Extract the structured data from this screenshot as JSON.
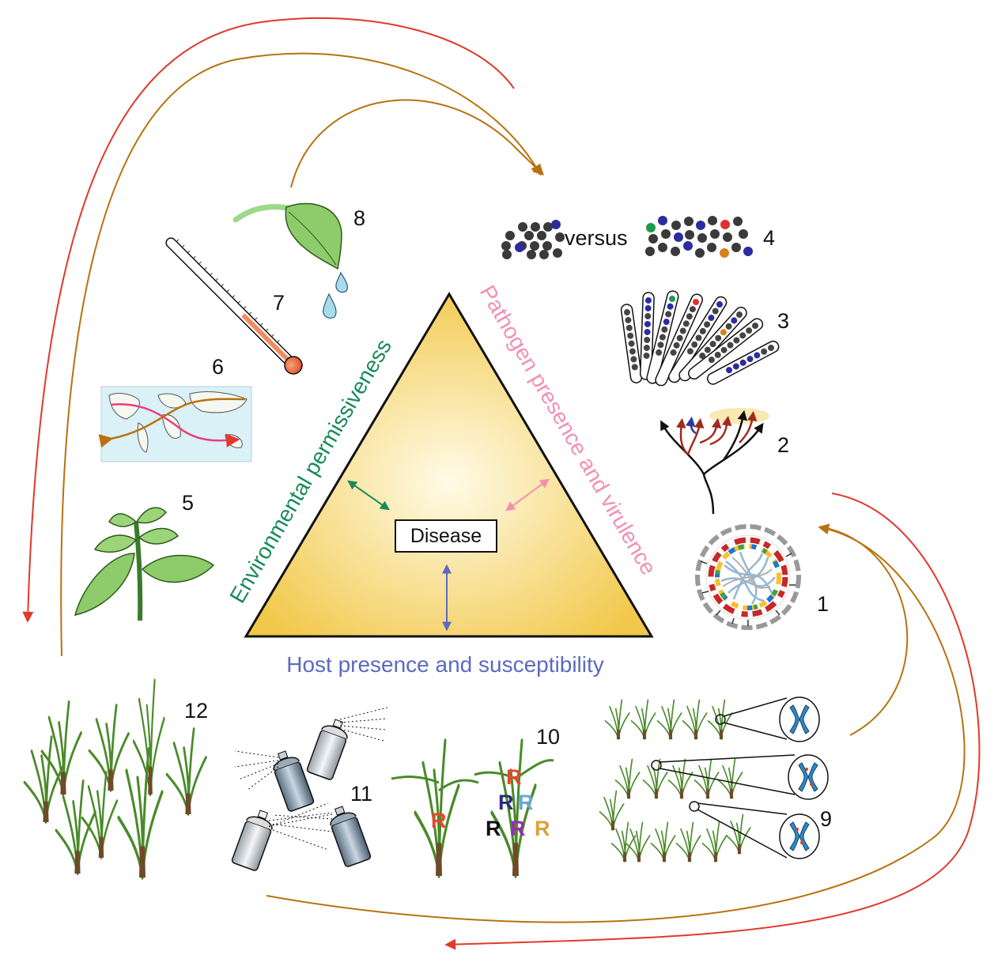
{
  "triangle": {
    "center_label": "Disease",
    "left_side_label": "Environmental permissiveness",
    "right_side_label": "Pathogen presence and virulence",
    "bottom_label": "Host presence and susceptibility",
    "colors": {
      "environment": "#1a8a5a",
      "pathogen": "#f48fb1",
      "host": "#5b6abf",
      "fill_center": "#fffbe8",
      "fill_edge": "#f2c84b"
    }
  },
  "panel_numbers": {
    "n1": "1",
    "n2": "2",
    "n3": "3",
    "n4": "4",
    "n5": "5",
    "n6": "6",
    "n7": "7",
    "n8": "8",
    "n9": "9",
    "n10": "10",
    "n11": "11",
    "n12": "12"
  },
  "population_comparison": {
    "word": "versus"
  },
  "resistance_genes": {
    "single": "R",
    "stack": [
      "R",
      "R",
      "R",
      "R",
      "R",
      "R"
    ]
  },
  "arrow_colors": {
    "red": "#e0392b",
    "brown": "#b8720f"
  }
}
